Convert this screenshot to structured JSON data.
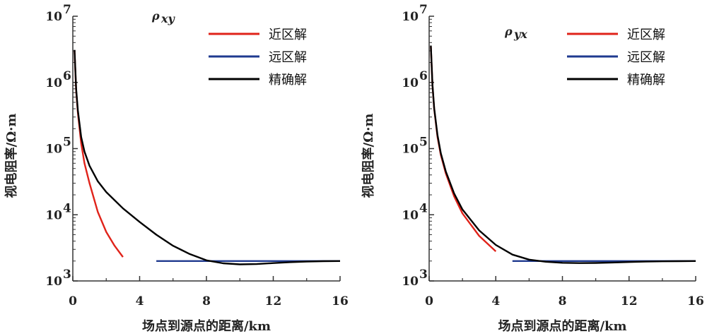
{
  "chart_data": [
    {
      "type": "line",
      "title": "ρ",
      "title_sub": "xy",
      "xlabel": "场点到源点的距离/km",
      "ylabel": "视电阻率/Ω·m",
      "xlim": [
        0,
        16
      ],
      "ylim_log10": [
        3,
        7
      ],
      "x_ticks": [
        0,
        4,
        8,
        12,
        16
      ],
      "y_ticks": [
        {
          "base": "10",
          "exp": "3"
        },
        {
          "base": "10",
          "exp": "4"
        },
        {
          "base": "10",
          "exp": "5"
        },
        {
          "base": "10",
          "exp": "6"
        },
        {
          "base": "10",
          "exp": "7"
        }
      ],
      "y_tick_exps": [
        3,
        4,
        5,
        6,
        7
      ],
      "legend": [
        "近区解",
        "远区解",
        "精确解"
      ],
      "series": [
        {
          "name": "近区解",
          "color": "#e0231a",
          "x": [
            0.1,
            0.2,
            0.3,
            0.5,
            0.7,
            1.0,
            1.5,
            2.0,
            2.5,
            3.0
          ],
          "y": [
            3000000,
            750000,
            350000,
            120000,
            60000,
            30000,
            11000,
            5500,
            3400,
            2300
          ]
        },
        {
          "name": "远区解",
          "color": "#1f3a8f",
          "x": [
            5.0,
            8.0,
            12.0,
            16.0
          ],
          "y": [
            2000,
            2000,
            2000,
            2000
          ]
        },
        {
          "name": "精确解",
          "color": "#000000",
          "x": [
            0.1,
            0.2,
            0.3,
            0.5,
            0.7,
            1.0,
            1.5,
            2.0,
            3.0,
            4.0,
            5.0,
            6.0,
            7.0,
            8.0,
            9.0,
            10.0,
            11.0,
            12.0,
            13.0,
            14.0,
            15.0,
            16.0
          ],
          "y": [
            3100000,
            800000,
            380000,
            150000,
            90000,
            55000,
            32000,
            22000,
            12500,
            7800,
            5000,
            3400,
            2550,
            2050,
            1850,
            1780,
            1800,
            1860,
            1920,
            1960,
            1990,
            2000
          ]
        }
      ]
    },
    {
      "type": "line",
      "title": "ρ",
      "title_sub": "yx",
      "xlabel": "场点到源点的距离/km",
      "ylabel": "视电阻率/Ω·m",
      "xlim": [
        0,
        16
      ],
      "ylim_log10": [
        3,
        7
      ],
      "x_ticks": [
        0,
        4,
        8,
        12,
        16
      ],
      "y_ticks": [
        {
          "base": "10",
          "exp": "3"
        },
        {
          "base": "10",
          "exp": "4"
        },
        {
          "base": "10",
          "exp": "5"
        },
        {
          "base": "10",
          "exp": "6"
        },
        {
          "base": "10",
          "exp": "7"
        }
      ],
      "y_tick_exps": [
        3,
        4,
        5,
        6,
        7
      ],
      "legend": [
        "近区解",
        "远区解",
        "精确解"
      ],
      "series": [
        {
          "name": "近区解",
          "color": "#e0231a",
          "x": [
            0.1,
            0.2,
            0.3,
            0.5,
            0.7,
            1.0,
            1.5,
            2.0,
            3.0,
            4.0
          ],
          "y": [
            3500000,
            900000,
            400000,
            150000,
            80000,
            42000,
            19000,
            10500,
            4800,
            2800
          ]
        },
        {
          "name": "远区解",
          "color": "#1f3a8f",
          "x": [
            5.0,
            8.0,
            12.0,
            16.0
          ],
          "y": [
            2000,
            2000,
            2000,
            2000
          ]
        },
        {
          "name": "精确解",
          "color": "#000000",
          "x": [
            0.1,
            0.2,
            0.3,
            0.5,
            0.7,
            1.0,
            1.5,
            2.0,
            3.0,
            4.0,
            5.0,
            6.0,
            7.0,
            8.0,
            9.0,
            10.0,
            11.0,
            12.0,
            13.0,
            14.0,
            15.0,
            16.0
          ],
          "y": [
            3600000,
            920000,
            410000,
            160000,
            85000,
            45000,
            21000,
            12000,
            5800,
            3500,
            2500,
            2100,
            1950,
            1880,
            1860,
            1870,
            1900,
            1930,
            1960,
            1980,
            1990,
            2000
          ]
        }
      ]
    }
  ]
}
